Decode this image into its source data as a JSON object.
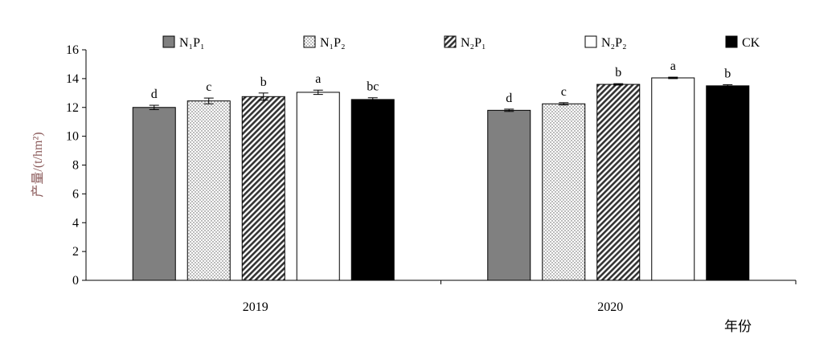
{
  "chart_data": {
    "type": "bar",
    "categories": [
      "2019",
      "2020"
    ],
    "series": [
      {
        "name": "N₁P₁",
        "values": [
          12.0,
          11.8
        ],
        "errors": [
          0.15,
          0.08
        ],
        "letters": [
          "d",
          "d"
        ],
        "pattern": "gray"
      },
      {
        "name": "N₁P₂",
        "values": [
          12.45,
          12.25
        ],
        "errors": [
          0.2,
          0.08
        ],
        "letters": [
          "c",
          "c"
        ],
        "pattern": "dots"
      },
      {
        "name": "N₂P₁",
        "values": [
          12.75,
          13.6
        ],
        "errors": [
          0.25,
          0.05
        ],
        "letters": [
          "b",
          "b"
        ],
        "pattern": "hatch"
      },
      {
        "name": "N₂P₂",
        "values": [
          13.05,
          14.05
        ],
        "errors": [
          0.15,
          0.05
        ],
        "letters": [
          "a",
          "a"
        ],
        "pattern": "white"
      },
      {
        "name": "CK",
        "values": [
          12.55,
          13.5
        ],
        "errors": [
          0.12,
          0.08
        ],
        "letters": [
          "bc",
          "b"
        ],
        "pattern": "black"
      }
    ],
    "ylabel": "产量/(t/hm²)",
    "xlabel": "年份",
    "ylim": [
      0,
      16
    ],
    "yticks": [
      0,
      2,
      4,
      6,
      8,
      10,
      12,
      14,
      16
    ],
    "grid": false,
    "legend": "top",
    "colors": {
      "gray": "#808080",
      "black": "#000000",
      "white": "#ffffff",
      "ylabel": "#8b5a5a"
    }
  }
}
